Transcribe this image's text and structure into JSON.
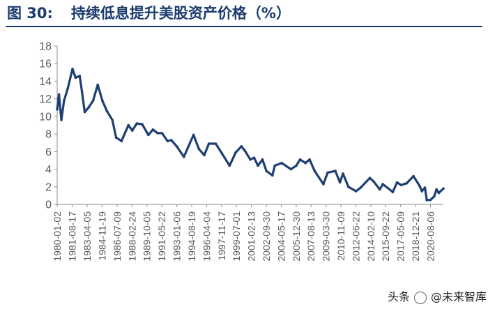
{
  "figure": {
    "label": "图 30:",
    "title": "持续低息提升美股资产价格（%）"
  },
  "watermark": {
    "source": "头条",
    "handle": "@未来智库"
  },
  "colors": {
    "title": "#1a3b6e",
    "series": "#1f3f73",
    "axis": "#8c8c8c",
    "tick_text": "#5a5a5a"
  },
  "chart_data": {
    "type": "line",
    "title": "持续低息提升美股资产价格（%）",
    "xlabel": "",
    "ylabel": "",
    "ylim": [
      0,
      18
    ],
    "yticks": [
      0,
      2,
      4,
      6,
      8,
      10,
      12,
      14,
      16,
      18
    ],
    "xlim": [
      "1980-01-02",
      "2021-12-31"
    ],
    "grid": false,
    "legend": "none",
    "xtick_labels": [
      "1980-01-02",
      "1981-08-17",
      "1983-04-05",
      "1984-11-19",
      "1986-07-09",
      "1988-02-24",
      "1989-10-05",
      "1991-05-22",
      "1993-01-06",
      "1994-08-19",
      "1996-04-04",
      "1997-11-17",
      "1999-07-01",
      "2001-02-13",
      "2002-09-30",
      "2004-05-17",
      "2005-12-30",
      "2007-08-13",
      "2009-03-30",
      "2010-11-09",
      "2012-06-22",
      "2014-02-10",
      "2015-09-22",
      "2017-05-09",
      "2018-12-21",
      "2020-08-06"
    ],
    "series": [
      {
        "name": "",
        "points": [
          [
            "1980-01-02",
            10.8
          ],
          [
            "1980-03-15",
            12.5
          ],
          [
            "1980-06-15",
            9.6
          ],
          [
            "1980-10-01",
            11.8
          ],
          [
            "1981-03-01",
            13.2
          ],
          [
            "1981-09-01",
            15.4
          ],
          [
            "1982-01-01",
            14.4
          ],
          [
            "1982-06-15",
            14.6
          ],
          [
            "1982-09-15",
            12.8
          ],
          [
            "1983-01-01",
            10.5
          ],
          [
            "1983-06-01",
            11.0
          ],
          [
            "1983-12-01",
            11.8
          ],
          [
            "1984-06-01",
            13.6
          ],
          [
            "1984-12-01",
            11.8
          ],
          [
            "1985-06-01",
            10.6
          ],
          [
            "1986-01-01",
            9.6
          ],
          [
            "1986-06-01",
            7.6
          ],
          [
            "1987-01-01",
            7.2
          ],
          [
            "1987-10-01",
            9.0
          ],
          [
            "1988-03-01",
            8.4
          ],
          [
            "1988-09-01",
            9.2
          ],
          [
            "1989-04-01",
            9.1
          ],
          [
            "1989-12-01",
            7.9
          ],
          [
            "1990-06-01",
            8.5
          ],
          [
            "1990-12-01",
            8.1
          ],
          [
            "1991-06-01",
            8.1
          ],
          [
            "1992-01-01",
            7.2
          ],
          [
            "1992-06-01",
            7.3
          ],
          [
            "1993-01-01",
            6.6
          ],
          [
            "1993-10-15",
            5.4
          ],
          [
            "1994-11-01",
            7.9
          ],
          [
            "1995-06-01",
            6.3
          ],
          [
            "1996-01-01",
            5.6
          ],
          [
            "1996-07-01",
            6.9
          ],
          [
            "1997-04-01",
            6.9
          ],
          [
            "1997-12-01",
            5.8
          ],
          [
            "1998-10-01",
            4.4
          ],
          [
            "1999-06-01",
            5.9
          ],
          [
            "2000-01-15",
            6.6
          ],
          [
            "2000-06-01",
            6.1
          ],
          [
            "2001-01-01",
            5.1
          ],
          [
            "2001-06-01",
            5.3
          ],
          [
            "2001-11-01",
            4.4
          ],
          [
            "2002-05-01",
            5.1
          ],
          [
            "2002-10-01",
            3.8
          ],
          [
            "2003-06-01",
            3.3
          ],
          [
            "2003-09-01",
            4.4
          ],
          [
            "2004-06-01",
            4.7
          ],
          [
            "2005-06-01",
            4.0
          ],
          [
            "2006-01-01",
            4.4
          ],
          [
            "2006-06-01",
            5.1
          ],
          [
            "2007-01-01",
            4.7
          ],
          [
            "2007-06-15",
            5.1
          ],
          [
            "2008-01-01",
            3.8
          ],
          [
            "2008-12-15",
            2.3
          ],
          [
            "2009-06-01",
            3.6
          ],
          [
            "2010-04-01",
            3.8
          ],
          [
            "2010-10-01",
            2.5
          ],
          [
            "2011-02-01",
            3.5
          ],
          [
            "2011-09-01",
            2.0
          ],
          [
            "2012-07-01",
            1.5
          ],
          [
            "2013-01-01",
            1.9
          ],
          [
            "2013-12-31",
            3.0
          ],
          [
            "2014-06-01",
            2.6
          ],
          [
            "2015-01-30",
            1.7
          ],
          [
            "2015-06-01",
            2.3
          ],
          [
            "2016-07-01",
            1.4
          ],
          [
            "2016-12-15",
            2.5
          ],
          [
            "2017-06-01",
            2.2
          ],
          [
            "2018-01-01",
            2.4
          ],
          [
            "2018-10-01",
            3.2
          ],
          [
            "2019-06-01",
            2.1
          ],
          [
            "2019-09-01",
            1.5
          ],
          [
            "2020-01-01",
            1.9
          ],
          [
            "2020-03-09",
            0.5
          ],
          [
            "2020-08-04",
            0.5
          ],
          [
            "2020-12-31",
            0.9
          ],
          [
            "2021-03-31",
            1.7
          ],
          [
            "2021-07-01",
            1.3
          ],
          [
            "2021-12-31",
            1.8
          ]
        ]
      }
    ]
  }
}
